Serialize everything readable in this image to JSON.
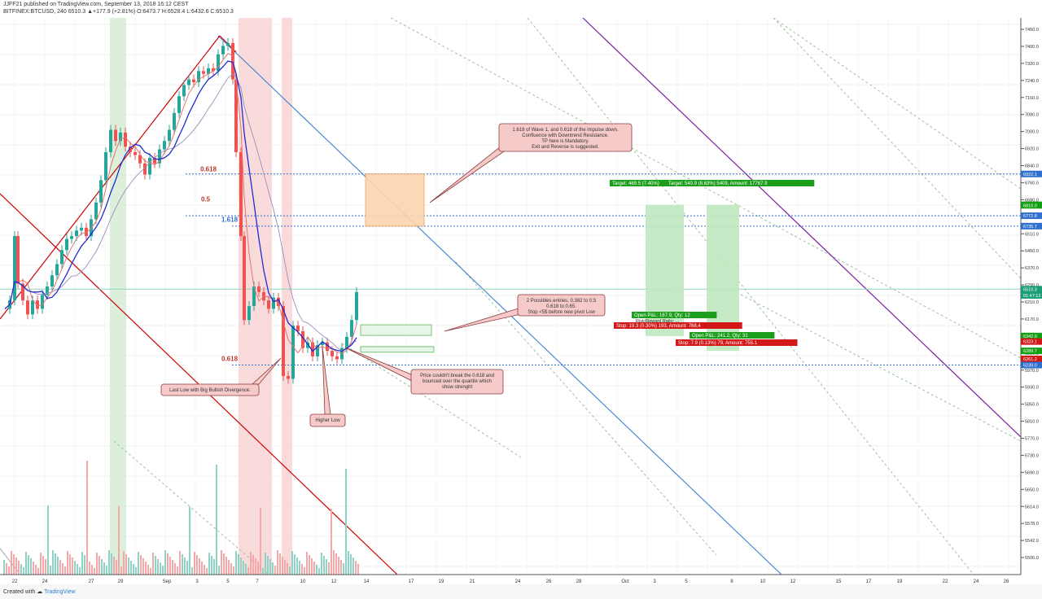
{
  "header": {
    "line1": "JJFF21 published on TradingView.com, September 13, 2018 16:12 CEST",
    "line2": "BITFINEX:BTCUSD, 240  6510.3  ▲+177.9 (+2.81%)  O:6473.7  H:6528.4  L:6432.6  C:6510.3"
  },
  "footer": {
    "created_with": "Created with",
    "brand": "TradingView"
  },
  "chart_data": {
    "type": "candlestick",
    "symbol": "BITFINEX:BTCUSD",
    "interval": "240",
    "ohlc": {
      "open": 6473.7,
      "high": 6528.4,
      "low": 6432.6,
      "close": 6510.3,
      "change": 177.9,
      "change_pct": 2.81
    },
    "x_tick_labels": [
      "22",
      "24",
      "27",
      "29",
      "Sep",
      "3",
      "5",
      "7",
      "10",
      "12",
      "14",
      "17",
      "19",
      "21",
      "24",
      "26",
      "28",
      "Oct",
      "3",
      "5",
      "8",
      "10",
      "12",
      "15",
      "17",
      "19",
      "22",
      "24",
      "26"
    ],
    "price_axis_labels": [
      "7450.0",
      "7400.0",
      "7320.0",
      "7240.0",
      "7160.0",
      "7080.0",
      "7000.0",
      "6920.0",
      "6840.0",
      "6760.0",
      "6680.0",
      "6580.0",
      "6510.0",
      "6450.0",
      "6370.0",
      "6290.0",
      "6210.0",
      "6170.0",
      "6090.0",
      "6050.0",
      "5970.0",
      "5930.0",
      "5850.0",
      "5810.0",
      "5770.0",
      "5730.0",
      "5690.0",
      "5650.0",
      "5614.0",
      "5578.0",
      "5542.0",
      "5506.0"
    ],
    "price_axis_range": [
      5490,
      7480
    ],
    "highlighted_price_labels": [
      {
        "text": "6922.1",
        "color": "#2f6fd0",
        "price": 6922.1
      },
      {
        "text": "6811.9",
        "color": "#12a012",
        "price": 6811.9
      },
      {
        "text": "6810.0",
        "color": "#12a012",
        "price": 6810.0
      },
      {
        "text": "6772.8",
        "color": "#2f6fd0",
        "price": 6772.8
      },
      {
        "text": "6735.7",
        "color": "#2f6fd0",
        "price": 6735.7
      },
      {
        "text": "6510.3",
        "color": "#1b9e77",
        "price": 6510.3
      },
      {
        "text": "01:47:12",
        "color": "#1b9e77",
        "price": 6488
      },
      {
        "text": "6342.9",
        "color": "#12a012",
        "price": 6342.9
      },
      {
        "text": "6323.1",
        "color": "#d21818",
        "price": 6323.1
      },
      {
        "text": "6289.7",
        "color": "#12a012",
        "price": 6289.7
      },
      {
        "text": "6261.2",
        "color": "#d21818",
        "price": 6261.2
      },
      {
        "text": "6239.0",
        "color": "#2f6fd0",
        "price": 6239.0
      }
    ],
    "fib_labels": [
      {
        "text": "0.618",
        "color": "#c0392b",
        "price": 6940
      },
      {
        "text": "0.5",
        "color": "#c0392b",
        "price": 6832
      },
      {
        "text": "1.618",
        "color": "#2f6fd0",
        "price": 6760
      },
      {
        "text": "0.618",
        "color": "#c0392b",
        "price": 6262
      }
    ],
    "annotations": [
      {
        "text": [
          "1.618 of Wave 1, and 0.618 of the impulse down.",
          "Confluence with Downtrend Resistance.",
          "TP here is Mandatory.",
          "Exit and Reverse is suggested."
        ]
      },
      {
        "text": [
          "2 Possibles entries, 0.382 to 0.5",
          "0.618 to 0.65.",
          "Stop <5$ before new pivot Low"
        ]
      },
      {
        "text": [
          "Price couldn't break the 0.618 and",
          "bounced over the quartile which",
          "show strenght"
        ]
      },
      {
        "text": [
          "Last Low with Big Bullish Divergence."
        ]
      },
      {
        "text": [
          "Higher Low"
        ]
      }
    ],
    "positions": [
      {
        "target": "Target: 469.5 (7.40%)",
        "open_pnl": "Open P&L: 167.9, Qty: 12",
        "sub": "Risk/Reward Ratio: ...",
        "stop": "Stop: 19.3 (0.30%) 193, Amount: 768.4"
      },
      {
        "target": "Target: 540.9 (8.63%) 5409, Amount: 17767.9",
        "open_pnl": "Open P&L: 241.2, Qty: 31",
        "stop": "Stop: 7.9 (0.13%) 79, Amount: 755.1"
      }
    ],
    "colors": {
      "up": "#26a69a",
      "down": "#ef5350",
      "ema_fast": "#1f2bd1",
      "ema_mid": "#e57373",
      "ema_slow": "#9a8fb8",
      "channel": "#d00000",
      "resistance": "#3c7fd0",
      "purple": "#7b1fa2"
    }
  }
}
